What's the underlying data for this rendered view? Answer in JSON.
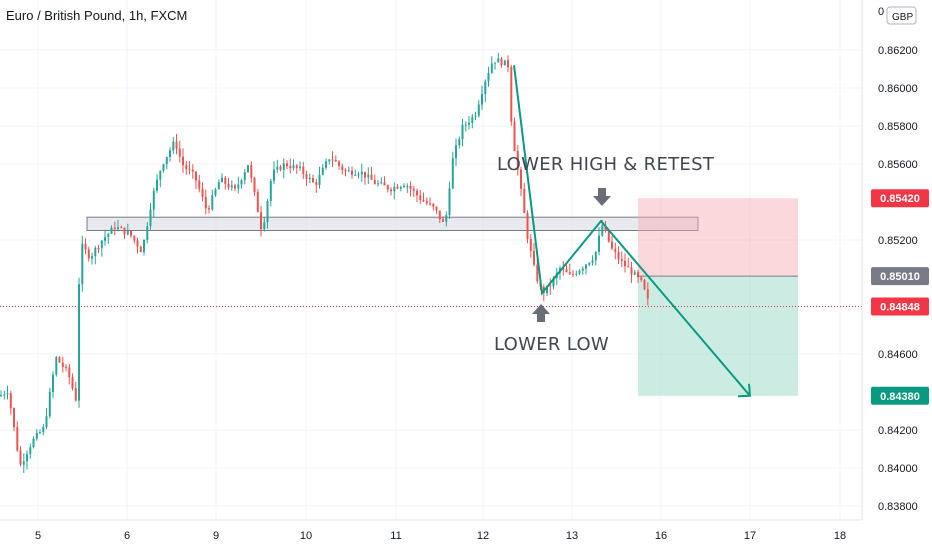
{
  "chart_data": {
    "type": "candlestick",
    "title": "Euro / British Pound, 1h, FXCM",
    "currency": "GBP",
    "y_ticks": [
      0.838,
      0.84,
      0.842,
      0.846,
      0.852,
      0.856,
      0.858,
      0.86,
      0.862
    ],
    "y_tick_labels": [
      "0.83800",
      "0.84000",
      "0.84200",
      "0.84600",
      "0.85200",
      "0.85600",
      "0.85800",
      "0.86000",
      "0.86200"
    ],
    "ylim": [
      0.8372,
      0.864
    ],
    "x_tick_labels": [
      "5",
      "6",
      "9",
      "10",
      "11",
      "12",
      "13",
      "16",
      "17",
      "18"
    ],
    "grid": true,
    "price_tags": [
      {
        "label": "0.85420",
        "value": 0.8542,
        "color": "#f23645"
      },
      {
        "label": "0.85010",
        "value": 0.8501,
        "color": "#787b86"
      },
      {
        "label": "0.84848",
        "value": 0.8485,
        "color": "#f23645"
      },
      {
        "label": "0.84380",
        "value": 0.8438,
        "color": "#089981"
      }
    ],
    "last_price": 0.8485,
    "resistance_zone": {
      "low": 0.8525,
      "high": 0.8532
    },
    "short_position": {
      "entry": 0.8501,
      "stop": 0.8542,
      "target": 0.8438
    },
    "annotations": [
      {
        "text": "LOWER HIGH &  RETEST"
      },
      {
        "text": "LOWER LOW"
      }
    ],
    "swing_path": [
      {
        "label": "lower-low",
        "value": 0.8492
      },
      {
        "label": "lower-high",
        "value": 0.853
      },
      {
        "label": "projection",
        "value": 0.8438
      }
    ],
    "candle_colors": {
      "up": "#26a69a",
      "down": "#ef5350"
    }
  }
}
